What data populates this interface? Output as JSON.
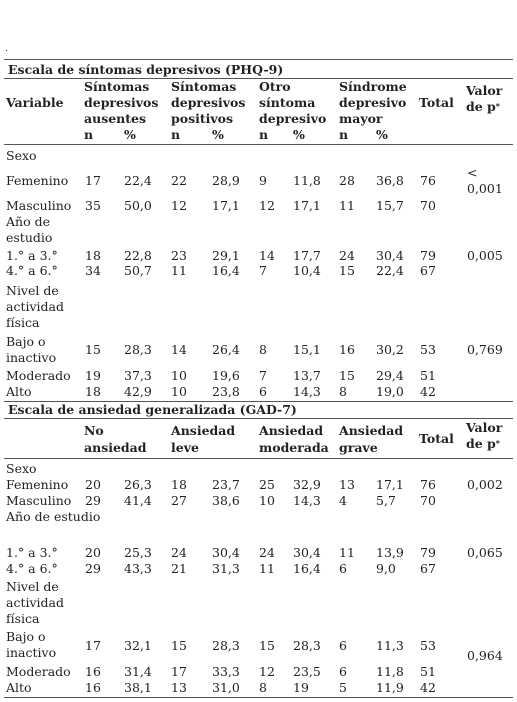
{
  "dot": ".",
  "phq": {
    "title": "Escala de síntomas depresivos (PHQ-9)",
    "headers": {
      "variable": "Variable",
      "g1": [
        "Síntomas",
        "depresivos",
        "ausentes"
      ],
      "g2": [
        "Síntomas",
        "depresivos",
        "positivos"
      ],
      "g3": [
        "Otro",
        "síntoma",
        "depresivo"
      ],
      "g4": [
        "Síndrome",
        "depresivo",
        "mayor"
      ],
      "total": "Total",
      "pvalue": "Valor de p",
      "star": "*",
      "n": "n",
      "pct": "%"
    },
    "sections": [
      {
        "label": "Sexo",
        "rows": [
          {
            "label": "Femenino",
            "v": [
              "17",
              "22,4",
              "22",
              "28,9",
              "9",
              "11,8",
              "28",
              "36,8"
            ],
            "total": "76",
            "p": "< 0,001"
          },
          {
            "label": "Masculino",
            "v": [
              "35",
              "50,0",
              "12",
              "17,1",
              "12",
              "17,1",
              "11",
              "15,7"
            ],
            "total": "70"
          }
        ]
      },
      {
        "label": "Año de estudio",
        "rows": [
          {
            "label": "1.° a 3.°",
            "v": [
              "18",
              "22,8",
              "23",
              "29,1",
              "14",
              "17,7",
              "24",
              "30,4"
            ],
            "total": "79",
            "p": "0,005"
          },
          {
            "label": "4.° a 6.°",
            "v": [
              "34",
              "50,7",
              "11",
              "16,4",
              "7",
              "10,4",
              "15",
              "22,4"
            ],
            "total": "67"
          }
        ]
      },
      {
        "label": "Nivel de actividad física",
        "rows": [
          {
            "label": "Bajo o inactivo",
            "v": [
              "15",
              "28,3",
              "14",
              "26,4",
              "8",
              "15,1",
              "16",
              "30,2"
            ],
            "total": "53",
            "p": "0,769"
          },
          {
            "label": "Moderado",
            "v": [
              "19",
              "37,3",
              "10",
              "19,6",
              "7",
              "13,7",
              "15",
              "29,4"
            ],
            "total": "51"
          },
          {
            "label": "Alto",
            "v": [
              "18",
              "42,9",
              "10",
              "23,8",
              "6",
              "14,3",
              "8",
              "19,0"
            ],
            "total": "42"
          }
        ]
      }
    ]
  },
  "gad": {
    "title": "Escala de ansiedad generalizada (GAD-7)",
    "headers": {
      "g1": [
        "No",
        "ansiedad"
      ],
      "g2": [
        "Ansiedad",
        "leve"
      ],
      "g3": [
        "Ansiedad",
        "moderada"
      ],
      "g4": [
        "Ansiedad",
        "grave"
      ],
      "total": "Total",
      "pvalue": "Valor de p",
      "star": "*"
    },
    "sections": [
      {
        "label": "Sexo",
        "rows": [
          {
            "label": "Femenino",
            "v": [
              "20",
              "26,3",
              "18",
              "23,7",
              "25",
              "32,9",
              "13",
              "17,1"
            ],
            "total": "76",
            "p": "0,002"
          },
          {
            "label": "Masculino",
            "v": [
              "29",
              "41,4",
              "27",
              "38,6",
              "10",
              "14,3",
              "4",
              "5,7"
            ],
            "total": "70"
          }
        ]
      },
      {
        "label": "Año de estudio",
        "rows": [
          {
            "label": "1.° a 3.°",
            "v": [
              "20",
              "25,3",
              "24",
              "30,4",
              "24",
              "30,4",
              "11",
              "13,9"
            ],
            "total": "79",
            "p": "0,065"
          },
          {
            "label": "4.° a 6.°",
            "v": [
              "29",
              "43,3",
              "21",
              "31,3",
              "11",
              "16,4",
              "6",
              "9,0"
            ],
            "total": "67"
          }
        ]
      },
      {
        "label": "Nivel de actividad física",
        "rows": [
          {
            "label": "Bajo o inactivo",
            "v": [
              "17",
              "32,1",
              "15",
              "28,3",
              "15",
              "28,3",
              "6",
              "11,3"
            ],
            "total": "53",
            "p": "0,964"
          },
          {
            "label": "Moderado",
            "v": [
              "16",
              "31,4",
              "17",
              "33,3",
              "12",
              "23,5",
              "6",
              "11,8"
            ],
            "total": "51"
          },
          {
            "label": "Alto",
            "v": [
              "16",
              "38,1",
              "13",
              "31,0",
              "8",
              "19",
              "5",
              "11,9"
            ],
            "total": "42"
          }
        ]
      }
    ]
  }
}
